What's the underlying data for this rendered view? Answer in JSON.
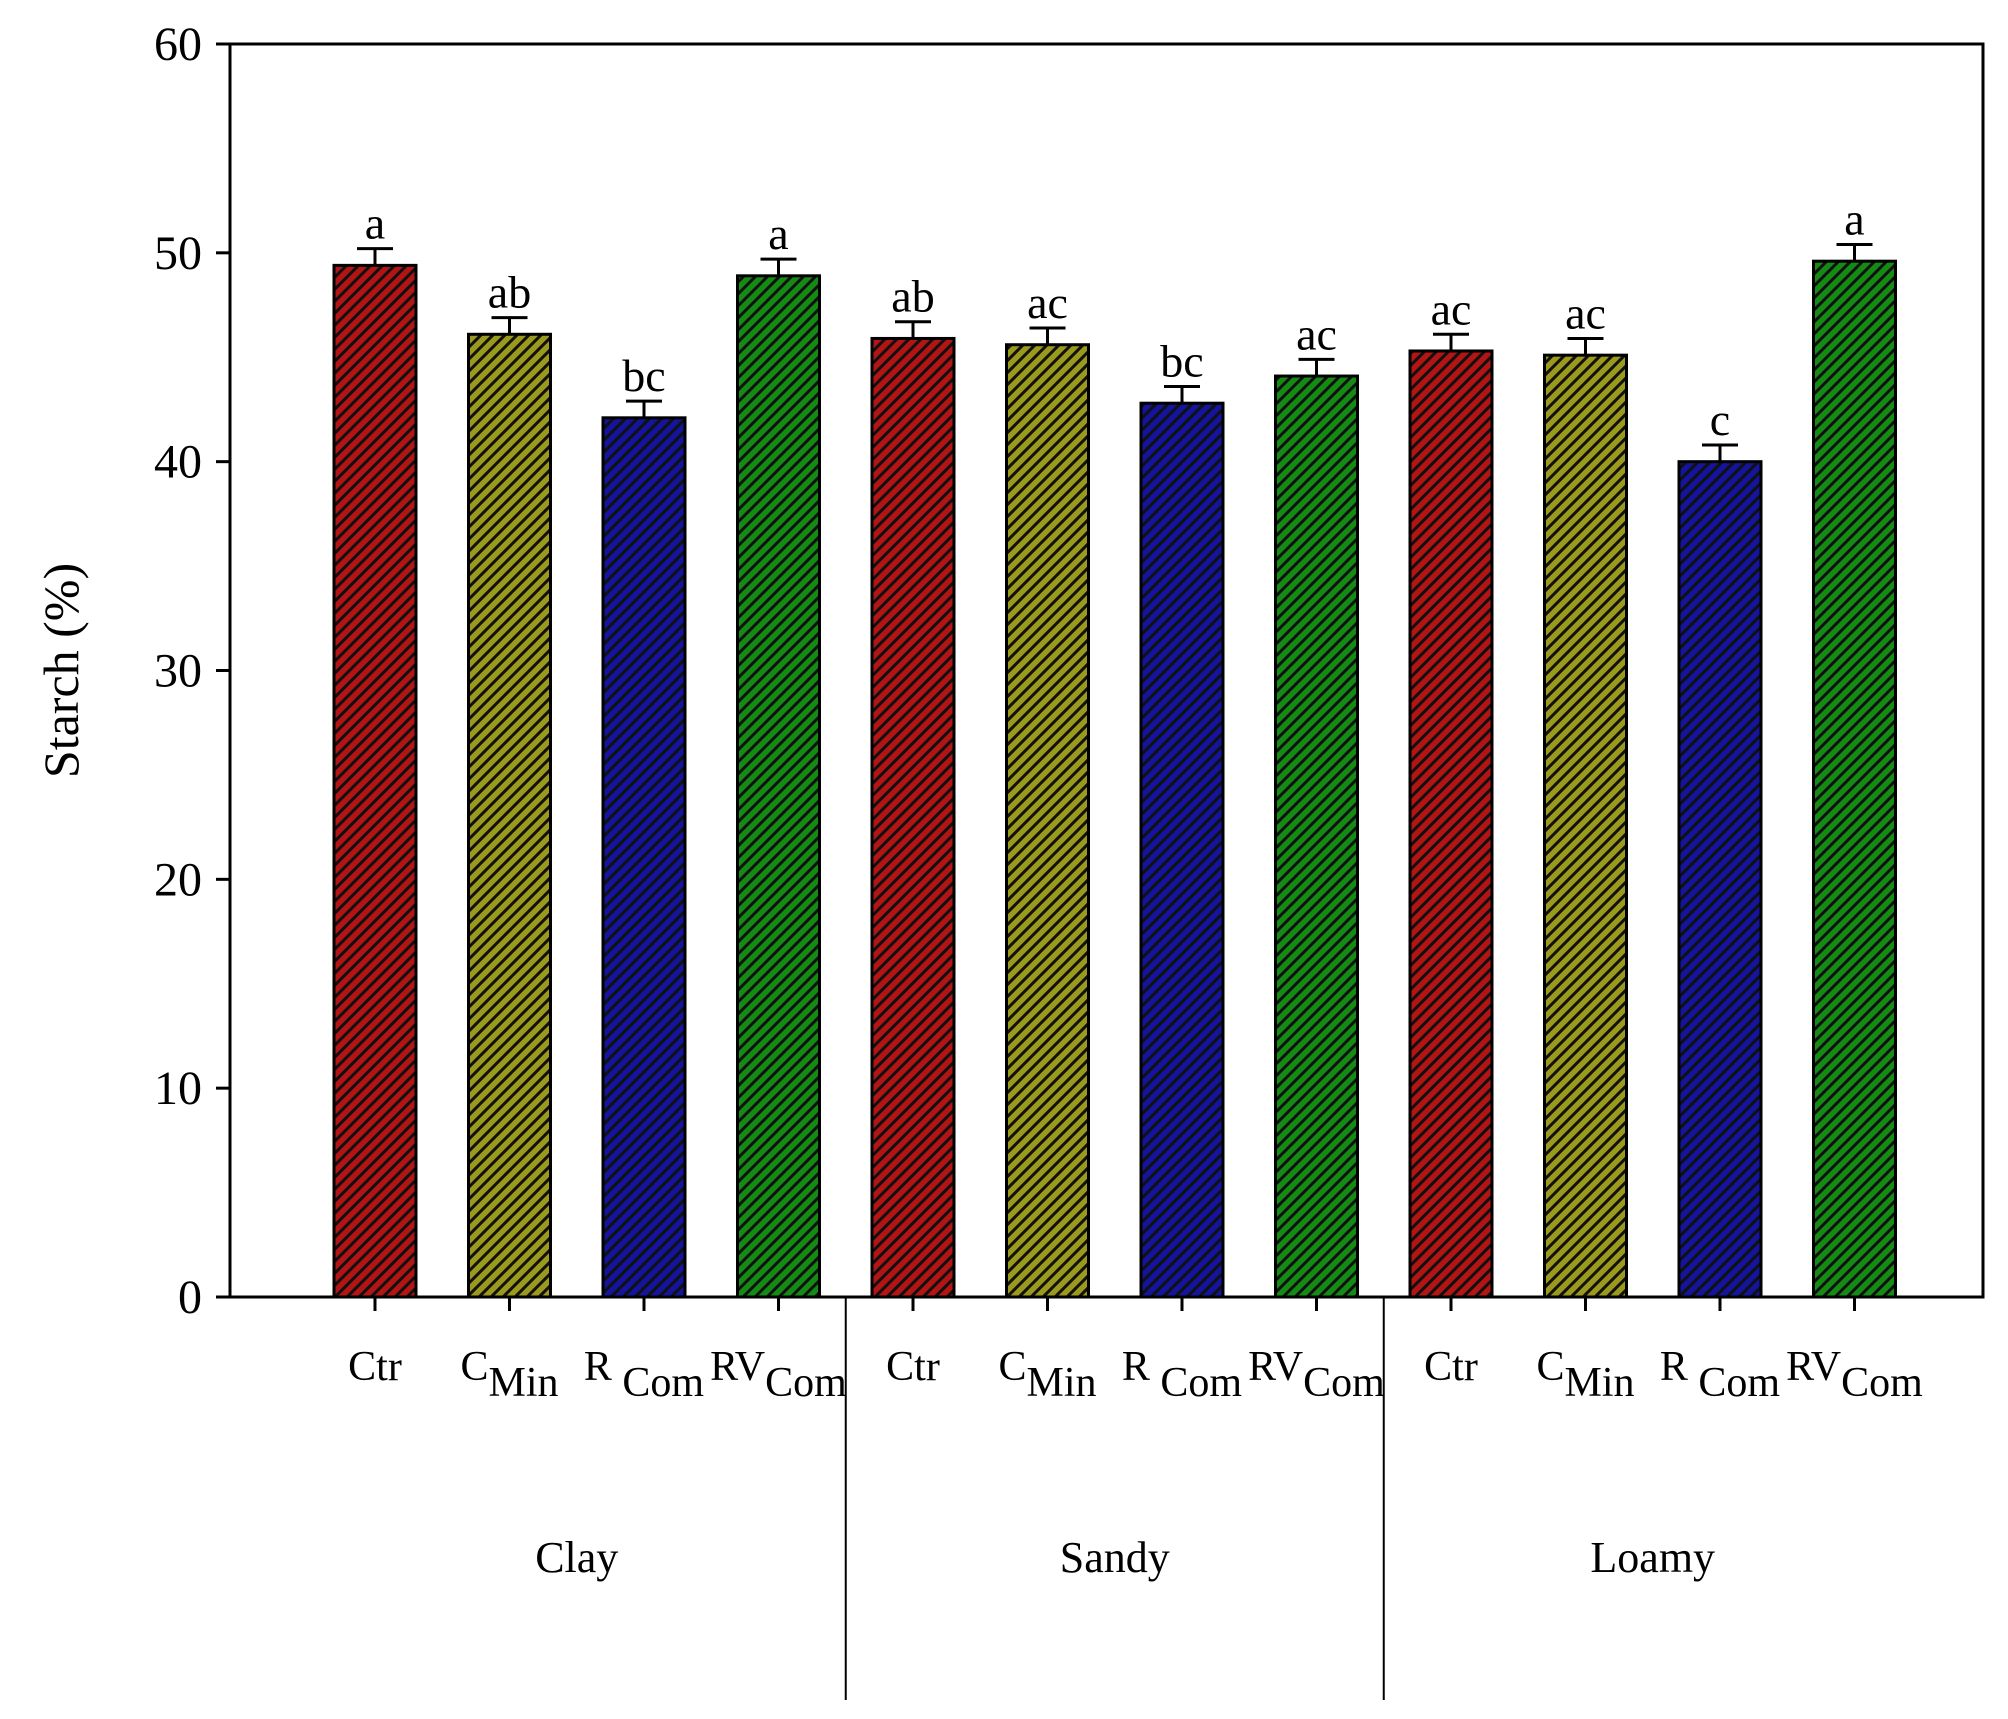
{
  "chart_data": {
    "type": "bar",
    "ylabel": "Starch  (%)",
    "xlabel": "",
    "ylim": [
      0,
      60
    ],
    "yticks": [
      "0",
      "10",
      "20",
      "30",
      "40",
      "50",
      "60"
    ],
    "grid": false,
    "error_bars": true,
    "groups": [
      {
        "name": "Clay",
        "bars": [
          {
            "label_main": "Ctr",
            "label_sub": "",
            "value": 49.4,
            "error": 0.8,
            "letter": "a",
            "color": "#b31414"
          },
          {
            "label_main": "C",
            "label_sub": "Min",
            "value": 46.1,
            "error": 0.8,
            "letter": "ab",
            "color": "#9c9a1c"
          },
          {
            "label_main": "R ",
            "label_sub": "Com",
            "value": 42.1,
            "error": 0.8,
            "letter": "bc",
            "color": "#14149c"
          },
          {
            "label_main": "RV",
            "label_sub": "Com",
            "value": 48.9,
            "error": 0.8,
            "letter": "a",
            "color": "#148c14"
          }
        ]
      },
      {
        "name": "Sandy",
        "bars": [
          {
            "label_main": "Ctr",
            "label_sub": "",
            "value": 45.9,
            "error": 0.8,
            "letter": "ab",
            "color": "#b31414"
          },
          {
            "label_main": "C",
            "label_sub": "Min",
            "value": 45.6,
            "error": 0.8,
            "letter": "ac",
            "color": "#9c9a1c"
          },
          {
            "label_main": "R ",
            "label_sub": "Com",
            "value": 42.8,
            "error": 0.8,
            "letter": "bc",
            "color": "#14149c"
          },
          {
            "label_main": "RV",
            "label_sub": "Com",
            "value": 44.1,
            "error": 0.8,
            "letter": "ac",
            "color": "#148c14"
          }
        ]
      },
      {
        "name": "Loamy",
        "bars": [
          {
            "label_main": "Ctr",
            "label_sub": "",
            "value": 45.3,
            "error": 0.8,
            "letter": "ac",
            "color": "#b31414"
          },
          {
            "label_main": "C",
            "label_sub": "Min",
            "value": 45.1,
            "error": 0.8,
            "letter": "ac",
            "color": "#9c9a1c"
          },
          {
            "label_main": "R ",
            "label_sub": "Com",
            "value": 40.0,
            "error": 0.8,
            "letter": "c",
            "color": "#14149c"
          },
          {
            "label_main": "RV",
            "label_sub": "Com",
            "value": 49.6,
            "error": 0.8,
            "letter": "a",
            "color": "#148c14"
          }
        ]
      }
    ]
  }
}
